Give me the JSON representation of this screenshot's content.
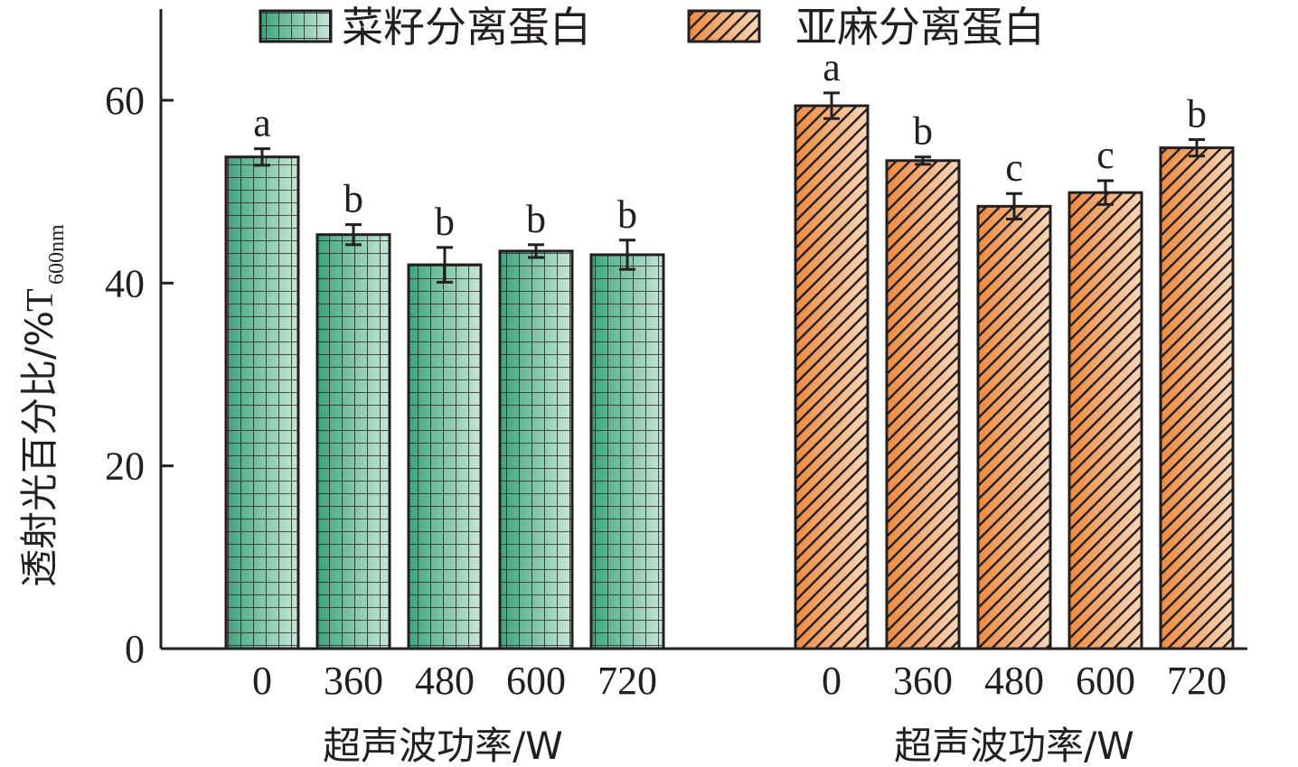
{
  "chart_data": {
    "type": "bar",
    "ylabel": "透射光百分比/%",
    "ylabel_symbol": "T",
    "ylabel_subscript": "600nm",
    "ylim": [
      0,
      70
    ],
    "yticks": [
      0,
      20,
      40,
      60
    ],
    "grid": false,
    "legend_position": "top",
    "groups": [
      {
        "name": "菜籽分离蛋白",
        "xlabel": "超声波功率/W",
        "pattern": "grid",
        "color_dark": "#3aa57c",
        "color_light": "#c8e6d8",
        "categories": [
          "0",
          "360",
          "480",
          "600",
          "720"
        ],
        "values": [
          53.8,
          45.3,
          42.0,
          43.5,
          43.1
        ],
        "errors": [
          0.9,
          1.1,
          1.9,
          0.7,
          1.6
        ],
        "significance": [
          "a",
          "b",
          "b",
          "b",
          "b"
        ]
      },
      {
        "name": "亚麻分离蛋白",
        "xlabel": "超声波功率/W",
        "pattern": "diagonal",
        "color_dark": "#ee8a3f",
        "color_light": "#f9d6b8",
        "categories": [
          "0",
          "360",
          "480",
          "600",
          "720"
        ],
        "values": [
          59.4,
          53.4,
          48.4,
          49.9,
          54.8
        ],
        "errors": [
          1.4,
          0.4,
          1.4,
          1.3,
          0.9
        ],
        "significance": [
          "a",
          "b",
          "c",
          "c",
          "b"
        ]
      }
    ]
  }
}
